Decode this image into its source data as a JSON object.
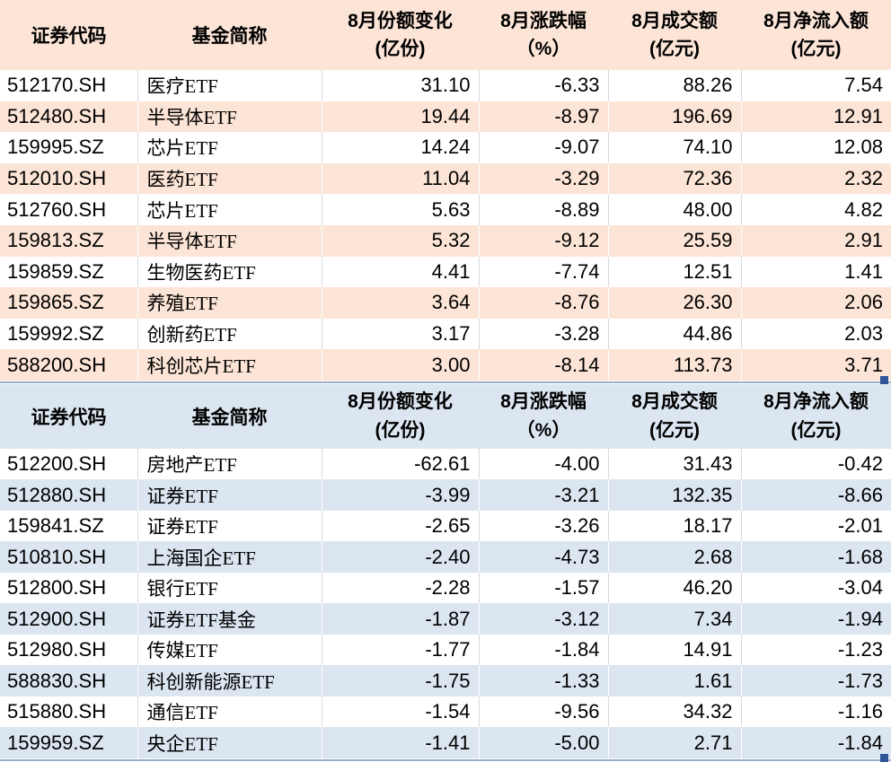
{
  "colors": {
    "tint_orange": "#fce4d6",
    "tint_blue": "#dce6f1",
    "gridline": "#d9d9d9",
    "selection_border": "#9bb0cd",
    "fill_handle": "#2f5597"
  },
  "chart_data": [
    {
      "type": "table",
      "header": {
        "code": "证券代码",
        "name": "基金简称",
        "share_change": [
          "8月份额变化",
          "(亿份)"
        ],
        "pct_change": [
          "8月涨跌幅",
          "（%）"
        ],
        "turnover": [
          "8月成交额",
          "(亿元)"
        ],
        "net_inflow": [
          "8月净流入额",
          "(亿元)"
        ]
      },
      "rows": [
        [
          "512170.SH",
          "医疗ETF",
          "31.10",
          "-6.33",
          "88.26",
          "7.54"
        ],
        [
          "512480.SH",
          "半导体ETF",
          "19.44",
          "-8.97",
          "196.69",
          "12.91"
        ],
        [
          "159995.SZ",
          "芯片ETF",
          "14.24",
          "-9.07",
          "74.10",
          "12.08"
        ],
        [
          "512010.SH",
          "医药ETF",
          "11.04",
          "-3.29",
          "72.36",
          "2.32"
        ],
        [
          "512760.SH",
          "芯片ETF",
          "5.63",
          "-8.89",
          "48.00",
          "4.82"
        ],
        [
          "159813.SZ",
          "半导体ETF",
          "5.32",
          "-9.12",
          "25.59",
          "2.91"
        ],
        [
          "159859.SZ",
          "生物医药ETF",
          "4.41",
          "-7.74",
          "12.51",
          "1.41"
        ],
        [
          "159865.SZ",
          "养殖ETF",
          "3.64",
          "-8.76",
          "26.30",
          "2.06"
        ],
        [
          "159992.SZ",
          "创新药ETF",
          "3.17",
          "-3.28",
          "44.86",
          "2.03"
        ],
        [
          "588200.SH",
          "科创芯片ETF",
          "3.00",
          "-8.14",
          "113.73",
          "3.71"
        ]
      ]
    },
    {
      "type": "table",
      "header": {
        "code": "证券代码",
        "name": "基金简称",
        "share_change": [
          "8月份额变化",
          "(亿份)"
        ],
        "pct_change": [
          "8月涨跌幅",
          "（%）"
        ],
        "turnover": [
          "8月成交额",
          "(亿元)"
        ],
        "net_inflow": [
          "8月净流入额",
          "(亿元)"
        ]
      },
      "rows": [
        [
          "512200.SH",
          "房地产ETF",
          "-62.61",
          "-4.00",
          "31.43",
          "-0.42"
        ],
        [
          "512880.SH",
          "证券ETF",
          "-3.99",
          "-3.21",
          "132.35",
          "-8.66"
        ],
        [
          "159841.SZ",
          "证券ETF",
          "-2.65",
          "-3.26",
          "18.17",
          "-2.01"
        ],
        [
          "510810.SH",
          "上海国企ETF",
          "-2.40",
          "-4.73",
          "2.68",
          "-1.68"
        ],
        [
          "512800.SH",
          "银行ETF",
          "-2.28",
          "-1.57",
          "46.20",
          "-3.04"
        ],
        [
          "512900.SH",
          "证券ETF基金",
          "-1.87",
          "-3.12",
          "7.34",
          "-1.94"
        ],
        [
          "512980.SH",
          "传媒ETF",
          "-1.77",
          "-1.84",
          "14.91",
          "-1.23"
        ],
        [
          "588830.SH",
          "科创新能源ETF",
          "-1.75",
          "-1.33",
          "1.61",
          "-1.73"
        ],
        [
          "515880.SH",
          "通信ETF",
          "-1.54",
          "-9.56",
          "34.32",
          "-1.16"
        ],
        [
          "159959.SZ",
          "央企ETF",
          "-1.41",
          "-5.00",
          "2.71",
          "-1.84"
        ]
      ]
    }
  ]
}
